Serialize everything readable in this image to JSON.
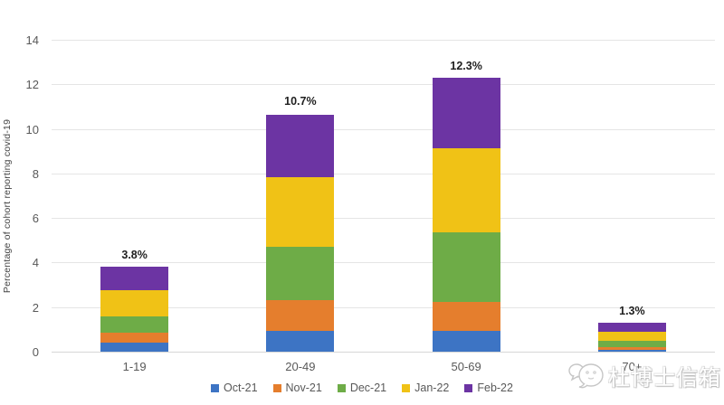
{
  "chart_data": {
    "type": "bar",
    "stacked": true,
    "ylabel": "Percentage of cohort reporting covid-19",
    "xlabel": "",
    "categories": [
      "1-19",
      "20-49",
      "50-69",
      "70+"
    ],
    "series": [
      {
        "name": "Oct-21",
        "color": "#3d74c4",
        "values": [
          0.4,
          0.95,
          0.95,
          0.1
        ]
      },
      {
        "name": "Nov-21",
        "color": "#e57e2d",
        "values": [
          0.45,
          1.35,
          1.3,
          0.1
        ]
      },
      {
        "name": "Dec-21",
        "color": "#6eac47",
        "values": [
          0.75,
          2.4,
          3.1,
          0.3
        ]
      },
      {
        "name": "Jan-22",
        "color": "#f0c216",
        "values": [
          1.15,
          3.15,
          3.8,
          0.4
        ]
      },
      {
        "name": "Feb-22",
        "color": "#6c34a3",
        "values": [
          1.05,
          2.8,
          3.15,
          0.4
        ]
      }
    ],
    "bar_total_labels": [
      "3.8%",
      "10.7%",
      "12.3%",
      "1.3%"
    ],
    "totals": [
      3.8,
      10.7,
      12.3,
      1.3
    ],
    "ylim": [
      0,
      14
    ],
    "yticks": [
      0,
      2,
      4,
      6,
      8,
      10,
      12,
      14
    ],
    "grid": true,
    "legend_position": "bottom"
  },
  "watermark": {
    "text": "杜博士信箱",
    "logo": "chat-bubbles-logo"
  },
  "ui_colors": {
    "gridline": "#e5e5e5",
    "axis_text": "#595959",
    "total_label_text": "#1f1f1f",
    "background": "#ffffff"
  }
}
